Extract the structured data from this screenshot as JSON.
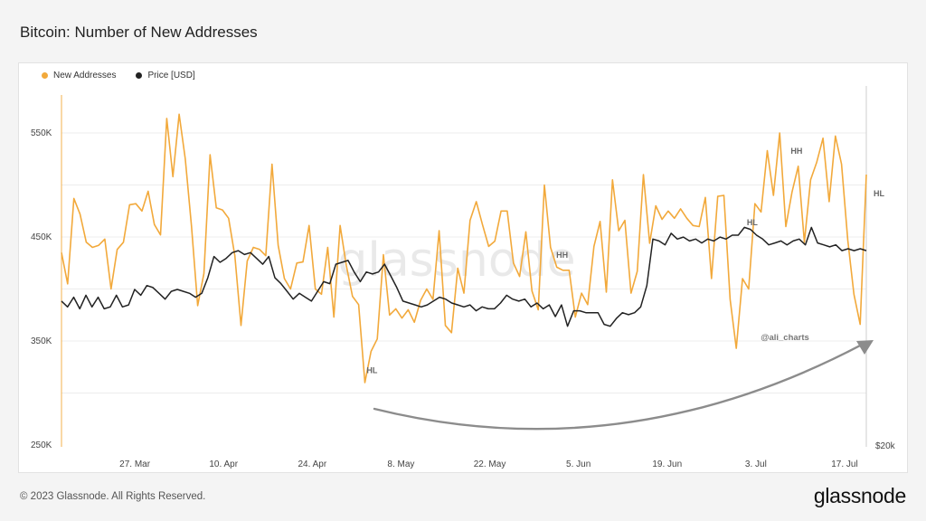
{
  "title": "Bitcoin: Number of New Addresses",
  "footer": {
    "copyright": "© 2023 Glassnode. All Rights Reserved.",
    "logo": "glassnode"
  },
  "watermark": "glassnode",
  "colors": {
    "new_addresses": "#f2a93b",
    "price": "#222222",
    "arrow": "#8c8c8c",
    "grid": "#ececec"
  },
  "chart_data": {
    "type": "line",
    "title": "Bitcoin: Number of New Addresses",
    "legend": [
      "New Addresses",
      "Price [USD]"
    ],
    "legend_placement": "top-left",
    "y_left": {
      "ticks": [
        "550K",
        "450K",
        "350K",
        "250K"
      ],
      "tick_values": [
        550000,
        450000,
        350000,
        250000
      ],
      "range": [
        250000,
        600000
      ]
    },
    "y_right": {
      "ticks": [
        "$20k"
      ]
    },
    "x_ticks": [
      "27. Mar",
      "10. Apr",
      "24. Apr",
      "8. May",
      "22. May",
      "5. Jun",
      "19. Jun",
      "3. Jul",
      "17. Jul"
    ],
    "x_range_days": [
      0,
      127
    ],
    "grid": true,
    "series": [
      {
        "name": "New Addresses",
        "values": [
          435000,
          405000,
          487000,
          472000,
          445000,
          440000,
          442000,
          448000,
          400000,
          438000,
          445000,
          481000,
          482000,
          475000,
          494000,
          462000,
          452000,
          564000,
          508000,
          568000,
          525000,
          460000,
          384000,
          415000,
          529000,
          478000,
          476000,
          468000,
          432000,
          365000,
          427000,
          440000,
          438000,
          432000,
          520000,
          442000,
          410000,
          400000,
          425000,
          426000,
          461000,
          400000,
          395000,
          440000,
          373000,
          461000,
          423000,
          393000,
          385000,
          310000,
          340000,
          352000,
          433000,
          375000,
          381000,
          372000,
          380000,
          368000,
          389000,
          400000,
          390000,
          456000,
          365000,
          358000,
          420000,
          396000,
          466000,
          484000,
          462000,
          441000,
          446000,
          475000,
          475000,
          425000,
          412000,
          455000,
          398000,
          380000,
          500000,
          440000,
          421000,
          418000,
          418000,
          373000,
          396000,
          385000,
          441000,
          465000,
          397000,
          505000,
          456000,
          466000,
          396000,
          417000,
          510000,
          444000,
          480000,
          467000,
          475000,
          468000,
          477000,
          468000,
          461000,
          460000,
          488000,
          410000,
          489000,
          490000,
          390000,
          343000,
          410000,
          400000,
          482000,
          474000,
          533000,
          490000,
          550000,
          460000,
          493000,
          518000,
          445000,
          505000,
          522000,
          545000,
          484000,
          547000,
          520000,
          447000,
          395000,
          366000,
          510000
        ],
        "annotations": [
          {
            "label": "HL",
            "day": 49
          },
          {
            "label": "HH",
            "day": 79
          },
          {
            "label": "HL",
            "day": 109
          },
          {
            "label": "HH",
            "day": 116
          },
          {
            "label": "HL",
            "day": 129
          }
        ]
      },
      {
        "name": "Price [USD]",
        "values": [
          27200,
          26900,
          27400,
          26800,
          27500,
          26900,
          27400,
          26800,
          26900,
          27500,
          26900,
          27000,
          27800,
          27500,
          28000,
          27900,
          27600,
          27300,
          27700,
          27800,
          27700,
          27600,
          27400,
          27600,
          28400,
          29500,
          29200,
          29400,
          29700,
          29800,
          29600,
          29700,
          29400,
          29100,
          29500,
          28400,
          28100,
          27700,
          27300,
          27600,
          27400,
          27200,
          27700,
          28200,
          28100,
          29100,
          29200,
          29300,
          28700,
          28200,
          28700,
          28600,
          28700,
          29100,
          28500,
          27900,
          27200,
          27100,
          27000,
          26900,
          27000,
          27200,
          27400,
          27300,
          27100,
          27000,
          26900,
          27000,
          26700,
          26900,
          26800,
          26800,
          27100,
          27500,
          27300,
          27200,
          27300,
          26900,
          27100,
          26800,
          27000,
          26400,
          27000,
          25900,
          26700,
          26700,
          26600,
          26600,
          26600,
          26000,
          25900,
          26300,
          26600,
          26500,
          26600,
          26900,
          28000,
          30400,
          30300,
          30100,
          30700,
          30400,
          30500,
          30300,
          30400,
          30200,
          30400,
          30300,
          30500,
          30400,
          30600,
          30600,
          31000,
          30900,
          30600,
          30400,
          30100,
          30200,
          30300,
          30100,
          30300,
          30400,
          30100,
          31000,
          30200,
          30100,
          30000,
          30100,
          29800,
          29900,
          29800,
          29900,
          29800
        ]
      }
    ],
    "annotations_text": [
      "@ali_charts"
    ]
  }
}
